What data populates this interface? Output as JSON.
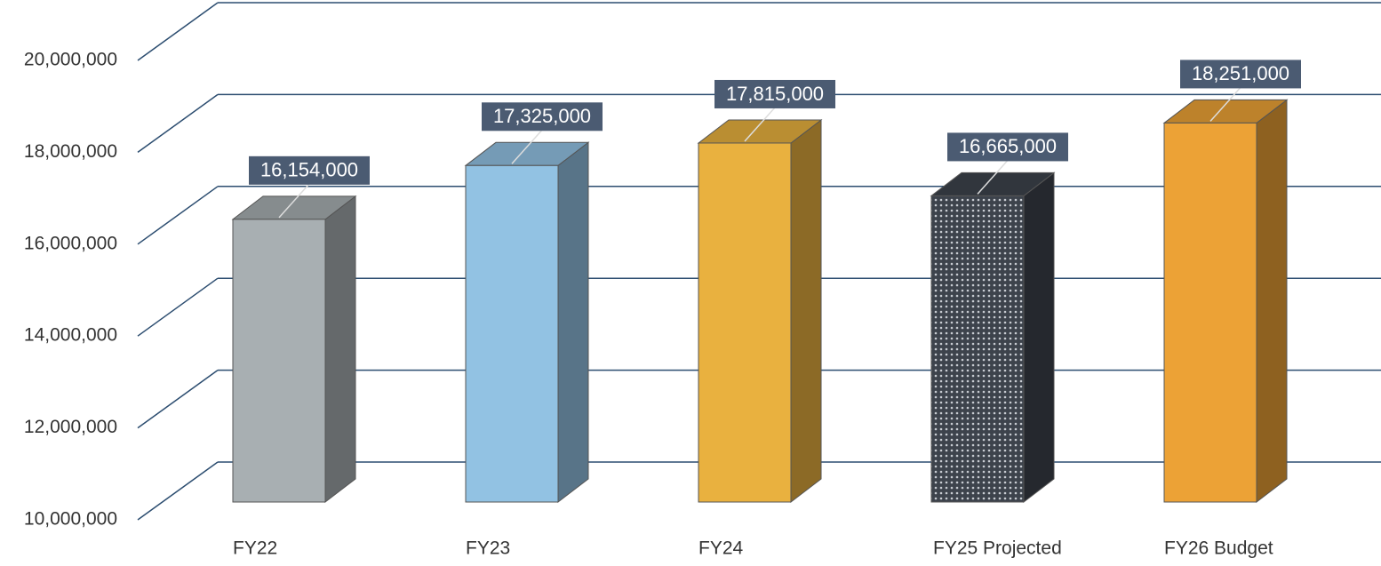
{
  "chart_data": {
    "type": "bar3d",
    "categories": [
      "FY22",
      "FY23",
      "FY24",
      "FY25 Projected",
      "FY26 Budget"
    ],
    "values": [
      16154000,
      17325000,
      17815000,
      16665000,
      18251000
    ],
    "value_labels": [
      "16,154,000",
      "17,325,000",
      "17,815,000",
      "16,665,000",
      "18,251,000"
    ],
    "colors": [
      "#a8afb2",
      "#92c2e3",
      "#e9b13f",
      "#3d434c",
      "#eca236"
    ],
    "ylim": [
      10000000,
      20000000
    ],
    "yticks": [
      {
        "value": 10000000,
        "label": "10,000,000"
      },
      {
        "value": 12000000,
        "label": "12,000,000"
      },
      {
        "value": 14000000,
        "label": "14,000,000"
      },
      {
        "value": 16000000,
        "label": "16,000,000"
      },
      {
        "value": 18000000,
        "label": "18,000,000"
      },
      {
        "value": 20000000,
        "label": "20,000,000"
      }
    ],
    "grid": true
  }
}
